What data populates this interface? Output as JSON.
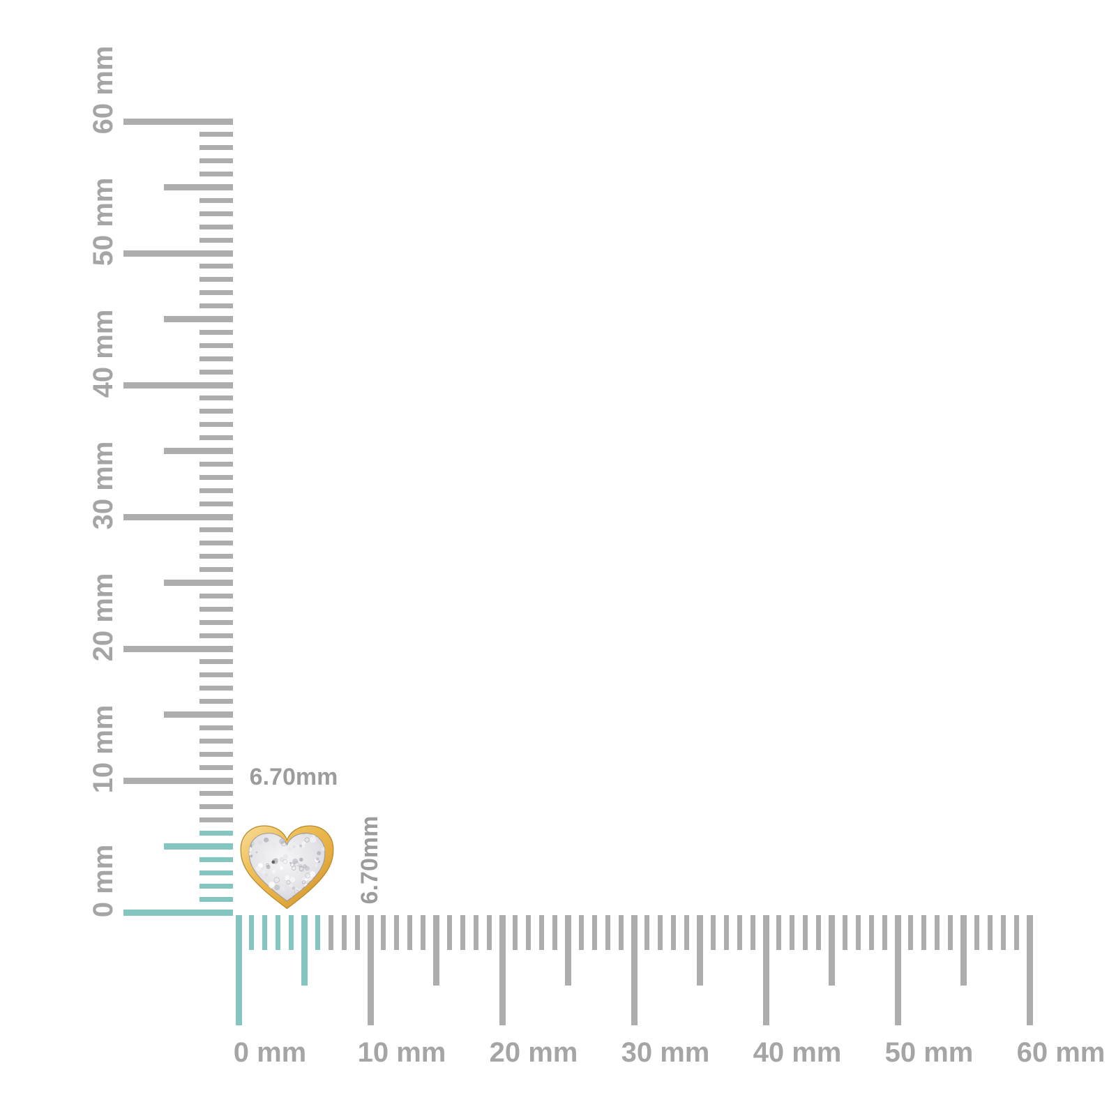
{
  "page": {
    "description": "Jewelry product size diagram with millimeter rulers"
  },
  "product": {
    "name": "pave-diamond-heart-stud",
    "width_label": "6.70mm",
    "height_label": "6.70mm",
    "width_mm": 6.7,
    "height_mm": 6.7
  },
  "rulers": {
    "unit": "mm",
    "min_mm": 0,
    "max_mm": 60,
    "minor_step_mm": 1,
    "medium_step_mm": 5,
    "major_step_mm": 10,
    "highlight_extent_mm": 6.7,
    "vertical_labels": [
      "0 mm",
      "10 mm",
      "20 mm",
      "30 mm",
      "40 mm",
      "50 mm",
      "60 mm"
    ],
    "horizontal_labels": [
      "0 mm",
      "10 mm",
      "20 mm",
      "30 mm",
      "40 mm",
      "50 mm",
      "60 mm"
    ]
  },
  "colors": {
    "tick_gray": "#adadad",
    "label_gray": "#a5a5a5",
    "measure_label_gray": "#9c9c9c",
    "highlight_teal": "#85c5c0",
    "gold": "#e9b54b",
    "gold_light": "#f7d88f",
    "gold_dark": "#c48d2e",
    "pave_base": "#e2e2e6",
    "pave_dark": "#9b9ba1",
    "sparkle_white": "#ffffff"
  }
}
